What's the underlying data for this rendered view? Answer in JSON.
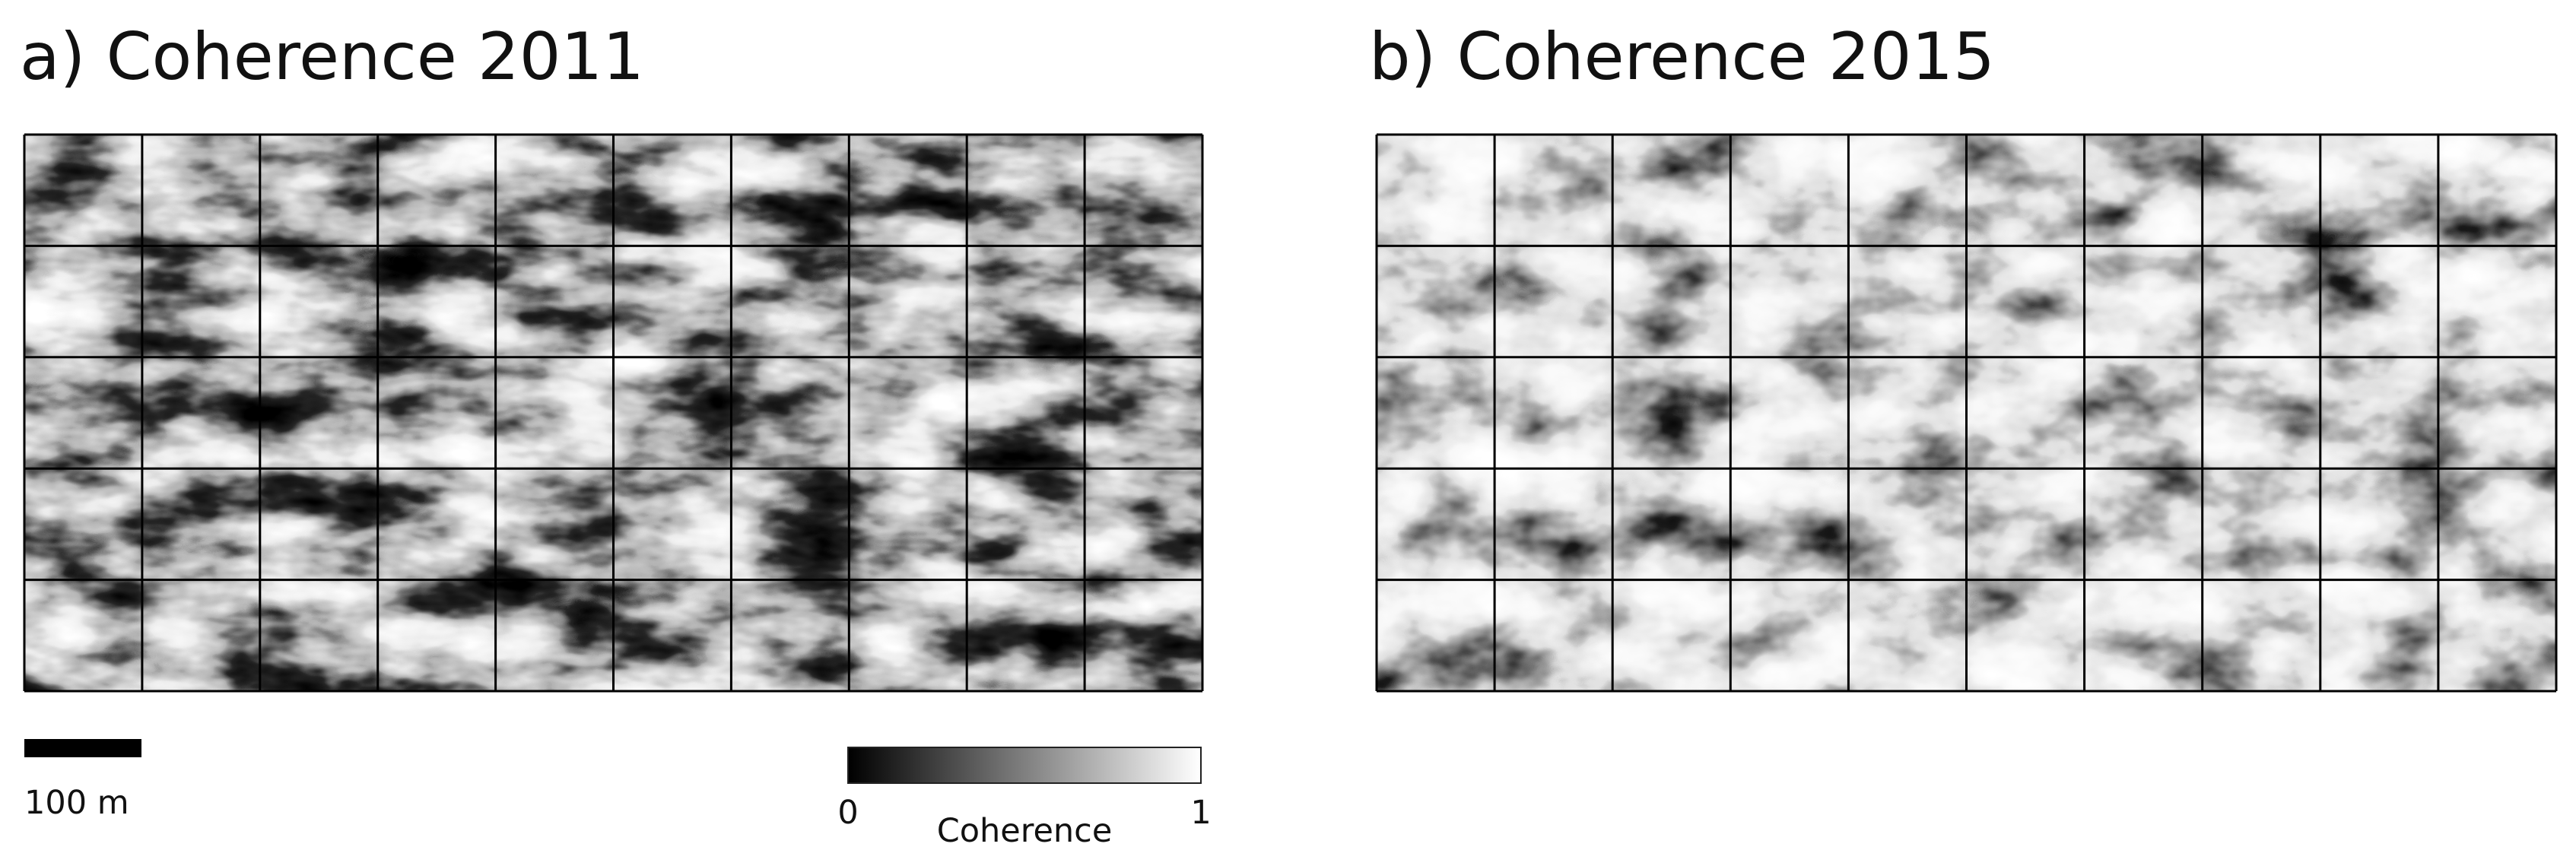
{
  "panels": [
    {
      "title": "a) Coherence 2011"
    },
    {
      "title": "b) Coherence 2015"
    }
  ],
  "scale_bar": {
    "label": "100 m"
  },
  "colorbar": {
    "label": "Coherence",
    "ticks": [
      0,
      1
    ]
  }
}
